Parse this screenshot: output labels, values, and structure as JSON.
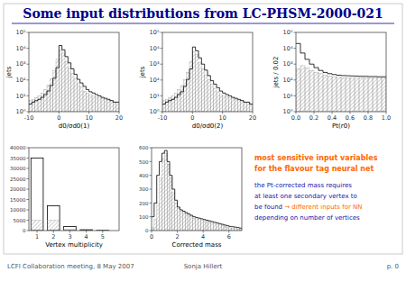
{
  "title": "Some input distributions from LC-PHSM-2000-021",
  "color": "#00008B",
  "annotations": [
    [
      {
        "text": "most sensitive input variables",
        "color": "#FF6600"
      }
    ],
    [
      {
        "text": "for the flavour tag neural net",
        "color": "#FF6600"
      }
    ],
    [
      {
        "text": "the Pt-corrected mass requires",
        "color": "#1414AA"
      }
    ],
    [
      {
        "text": "at least one secondary vertex to",
        "color": "#1414AA"
      }
    ],
    [
      {
        "text": "be found ",
        "color": "#1414AA"
      },
      {
        "text": "→ different inputs for NN",
        "color": "#FF6600"
      }
    ],
    [
      {
        "text": "depending on number of vertices",
        "color": "#1414AA"
      }
    ]
  ],
  "footer": [
    "LCFI Collaboration meeting, 8 May 2007",
    "Sonja Hillert",
    "p. 0"
  ],
  "chart_data": [
    {
      "type": "histogram",
      "log": "y",
      "xlabel": "d0/σd0(1)",
      "ylabel": "jets",
      "bins": [
        -10,
        -9,
        -8,
        -7,
        -6,
        -5,
        -4,
        -3,
        -2,
        -1,
        0,
        1,
        2,
        3,
        4,
        5,
        6,
        7,
        8,
        9,
        10,
        11,
        12,
        13,
        14,
        15,
        16,
        17,
        18,
        19,
        20
      ],
      "series": [
        {
          "values": [
            5,
            6,
            8,
            10,
            15,
            25,
            50,
            120,
            400,
            2000,
            8000,
            5000,
            1500,
            600,
            250,
            120,
            60,
            35,
            20,
            14,
            12,
            10,
            9,
            8,
            7,
            6,
            5,
            5,
            4,
            4
          ]
        },
        {
          "values": [
            3,
            4,
            5,
            6,
            8,
            12,
            20,
            45,
            130,
            600,
            15000,
            8000,
            3000,
            1200,
            500,
            230,
            110,
            65,
            40,
            25,
            18,
            15,
            12,
            10,
            8,
            7,
            6,
            5,
            4,
            4
          ]
        }
      ],
      "xlim": [
        -10,
        20
      ],
      "xticks": [
        -10,
        0,
        10,
        20
      ],
      "ylim": [
        1,
        100000
      ],
      "yticks": [
        {
          "value": 1,
          "label": "10⁰"
        },
        {
          "value": 10,
          "label": "10¹"
        },
        {
          "value": 100,
          "label": "10²"
        },
        {
          "value": 1000,
          "label": "10³"
        },
        {
          "value": 10000,
          "label": "10⁴"
        },
        {
          "value": 100000,
          "label": "10⁵"
        }
      ]
    },
    {
      "type": "histogram",
      "log": "y",
      "xlabel": "d0/σd0(2)",
      "ylabel": "jets",
      "bins": [
        -10,
        -9,
        -8,
        -7,
        -6,
        -5,
        -4,
        -3,
        -2,
        -1,
        0,
        1,
        2,
        3,
        4,
        5,
        6,
        7,
        8,
        9,
        10,
        11,
        12,
        13,
        14,
        15,
        16,
        17,
        18,
        19,
        20
      ],
      "series": [
        {
          "values": [
            5,
            6,
            8,
            10,
            15,
            25,
            45,
            100,
            300,
            1500,
            6000,
            4000,
            1200,
            500,
            200,
            100,
            55,
            30,
            18,
            12,
            10,
            9,
            8,
            7,
            6,
            5,
            5,
            4,
            4,
            3
          ]
        },
        {
          "values": [
            3,
            4,
            5,
            6,
            8,
            12,
            18,
            40,
            110,
            500,
            12000,
            7000,
            2500,
            1000,
            420,
            190,
            90,
            55,
            33,
            20,
            15,
            12,
            10,
            8,
            7,
            6,
            5,
            4,
            4,
            3
          ]
        }
      ],
      "xlim": [
        -10,
        20
      ],
      "xticks": [
        -10,
        0,
        10,
        20
      ],
      "ylim": [
        1,
        100000
      ],
      "yticks": [
        {
          "value": 1,
          "label": "10⁰"
        },
        {
          "value": 10,
          "label": "10¹"
        },
        {
          "value": 100,
          "label": "10²"
        },
        {
          "value": 1000,
          "label": "10³"
        },
        {
          "value": 10000,
          "label": "10⁴"
        },
        {
          "value": 100000,
          "label": "10⁵"
        }
      ]
    },
    {
      "type": "histogram",
      "log": "y",
      "xlabel": "Pt(r0)",
      "ylabel": "jets / 0.02",
      "bins": [
        0.0,
        0.05,
        0.1,
        0.15,
        0.2,
        0.25,
        0.3,
        0.35,
        0.4,
        0.45,
        0.5,
        0.55,
        0.6,
        0.65,
        0.7,
        0.75,
        0.8,
        0.85,
        0.9,
        0.95,
        1.0
      ],
      "series": [
        {
          "values": [
            500,
            800,
            600,
            400,
            300,
            250,
            200,
            180,
            160,
            150,
            140,
            135,
            130,
            130,
            130,
            130,
            130,
            130,
            130,
            135
          ]
        },
        {
          "values": [
            20000,
            5000,
            2000,
            1000,
            600,
            400,
            300,
            250,
            220,
            200,
            190,
            185,
            180,
            175,
            170,
            170,
            165,
            165,
            160,
            160
          ]
        }
      ],
      "xlim": [
        0,
        1
      ],
      "xticks": [
        {
          "value": 0,
          "label": "0.0"
        },
        0.2,
        0.4,
        0.6,
        0.8,
        {
          "value": 1,
          "label": "1.0"
        }
      ],
      "ylim": [
        1,
        100000
      ],
      "yticks": [
        {
          "value": 1,
          "label": "10⁰"
        },
        {
          "value": 10,
          "label": "10¹"
        },
        {
          "value": 100,
          "label": "10²"
        },
        {
          "value": 1000,
          "label": "10³"
        },
        {
          "value": 10000,
          "label": "10⁴"
        },
        {
          "value": 100000,
          "label": "10⁵"
        }
      ]
    },
    {
      "type": "bar",
      "xlabel": "Vertex multiplicity",
      "x": [
        1,
        2,
        3,
        4,
        5
      ],
      "series": [
        {
          "values": [
            35000,
            12000,
            2000,
            400,
            100
          ]
        },
        {
          "values": [
            5000,
            5000,
            500,
            100,
            30
          ]
        }
      ],
      "xlim": [
        0.5,
        6.0
      ],
      "xticks": [
        1,
        2,
        3,
        4,
        5
      ],
      "ylim": [
        0,
        40000
      ],
      "yticks": [
        0,
        5000,
        10000,
        15000,
        20000,
        25000,
        30000,
        35000,
        40000
      ]
    },
    {
      "type": "histogram",
      "xlabel": "Corrected mass",
      "bins": [
        0.0,
        0.2,
        0.4,
        0.6,
        0.8,
        1.0,
        1.2,
        1.4,
        1.6,
        1.8,
        2.0,
        2.2,
        2.4,
        2.6,
        2.8,
        3.0,
        3.2,
        3.4,
        3.6,
        3.8,
        4.0,
        4.2,
        4.4,
        4.6,
        4.8,
        5.0,
        5.2,
        5.4,
        5.6,
        5.8,
        6.0,
        6.2,
        6.4,
        6.6,
        6.8,
        7.0
      ],
      "series": [
        {
          "values": [
            20,
            80,
            200,
            380,
            520,
            560,
            480,
            380,
            280,
            200,
            160,
            140,
            130,
            120,
            110,
            100,
            90,
            85,
            80,
            75,
            70,
            65,
            60,
            55,
            50,
            45,
            40,
            35,
            30,
            25,
            20,
            18,
            15,
            12,
            10
          ]
        },
        {
          "values": [
            100,
            200,
            400,
            500,
            560,
            580,
            500,
            400,
            300,
            220,
            170,
            150,
            140,
            130,
            120,
            110,
            100,
            95,
            90,
            85,
            80,
            75,
            70,
            65,
            60,
            55,
            50,
            45,
            40,
            35,
            30,
            28,
            25,
            22,
            18
          ]
        }
      ],
      "xlim": [
        0,
        7
      ],
      "xticks": [
        0,
        2,
        4,
        6
      ],
      "ylim": [
        0,
        600
      ],
      "yticks": [
        0,
        100,
        200,
        300,
        400,
        500,
        600
      ]
    }
  ]
}
